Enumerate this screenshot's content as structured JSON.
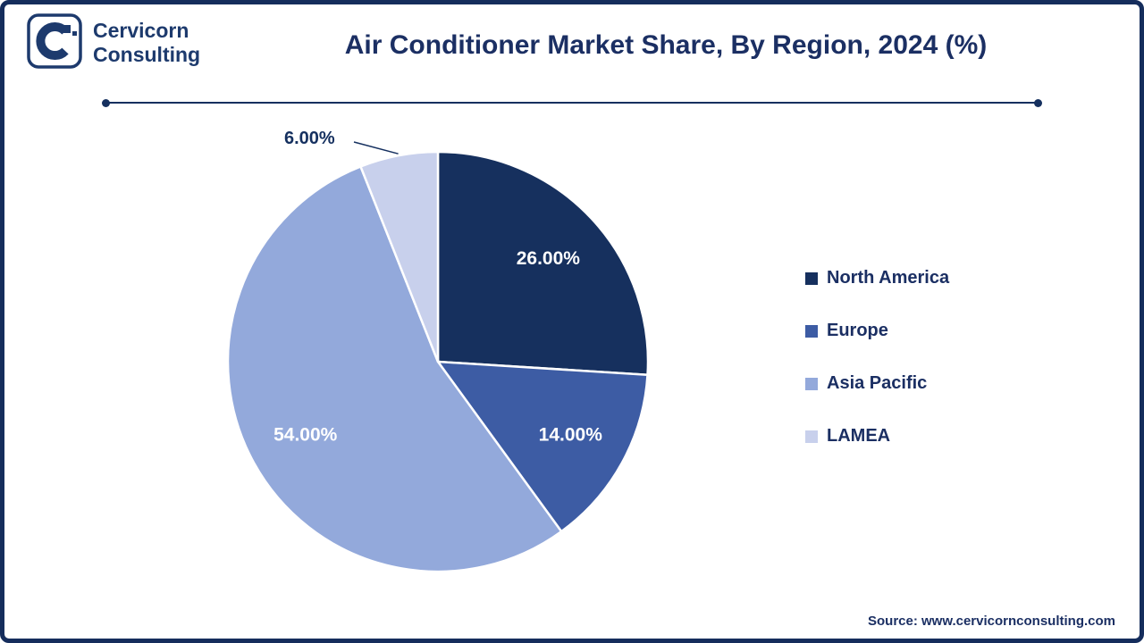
{
  "brand": {
    "name_line1": "Cervicorn",
    "name_line2": "Consulting"
  },
  "title": "Air Conditioner Market Share, By Region, 2024 (%)",
  "chart_data": {
    "type": "pie",
    "title": "Air Conditioner Market Share, By Region, 2024 (%)",
    "unit": "%",
    "categories": [
      "North America",
      "Europe",
      "Asia Pacific",
      "LAMEA"
    ],
    "values": [
      26.0,
      14.0,
      54.0,
      6.0
    ],
    "value_labels": [
      "26.00%",
      "14.00%",
      "54.00%",
      "6.00%"
    ],
    "colors": [
      "#16305e",
      "#3d5ca4",
      "#93a9db",
      "#c8d0ec"
    ],
    "start_angle_deg": -90,
    "direction": "clockwise",
    "label_placement": [
      "inside",
      "inside",
      "inside",
      "outside"
    ],
    "inside_label_color": "#ffffff",
    "outside_label_color": "#15305f",
    "legend_position": "right"
  },
  "footer": {
    "source": "Source: www.cervicornconsulting.com"
  }
}
